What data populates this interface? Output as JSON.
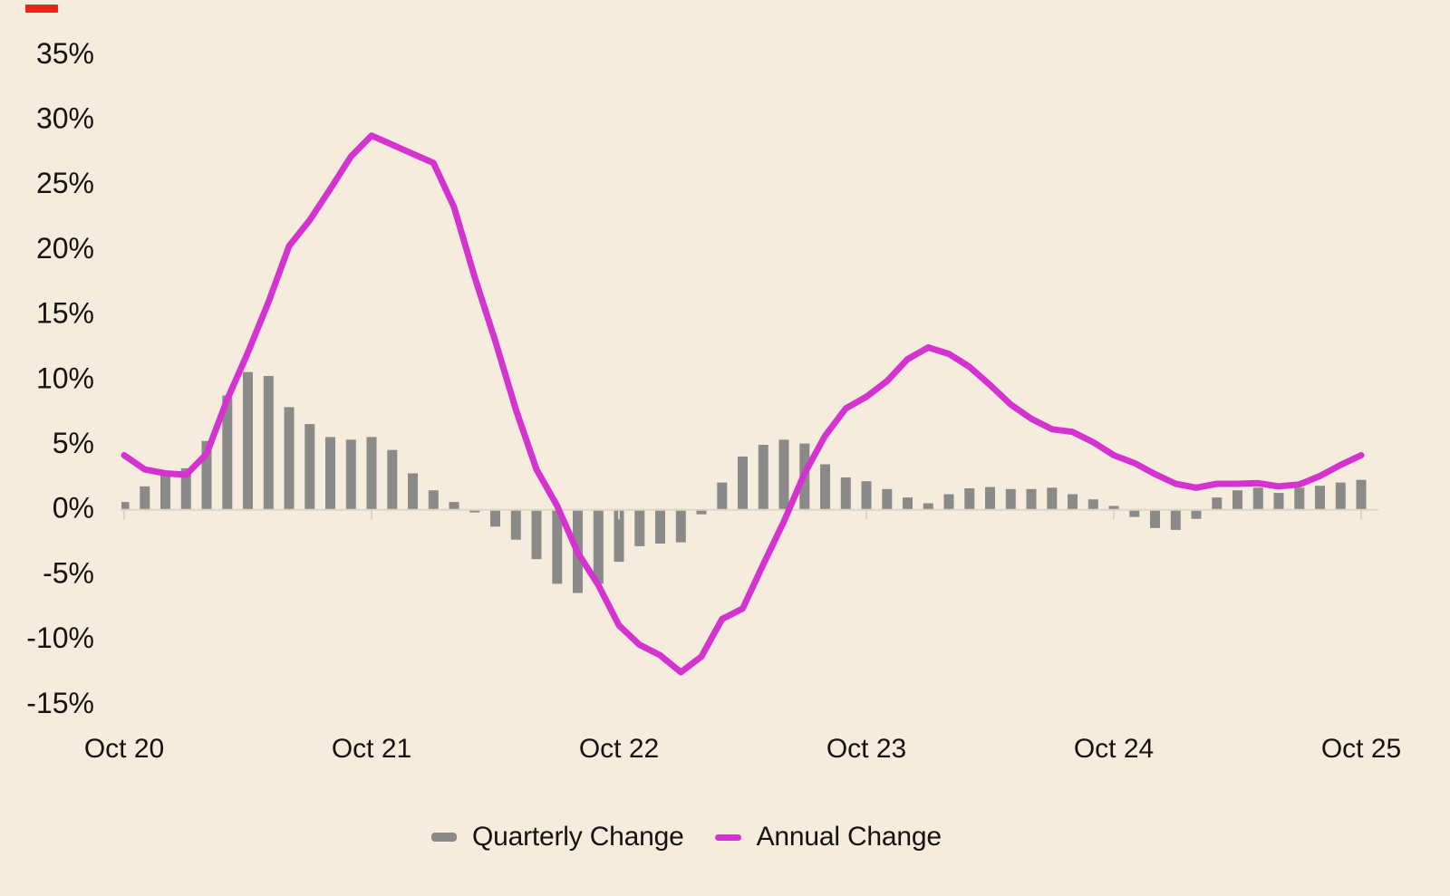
{
  "page": {
    "background_color": "#f5ecdd",
    "text_color": "#16120f",
    "axis_line_color": "#ddd5c5",
    "red_dash_color": "#e8251a"
  },
  "legend": {
    "items": [
      {
        "label": "Quarterly Change",
        "swatch": "bar",
        "color": "#8a8a88"
      },
      {
        "label": "Annual Change",
        "swatch": "line",
        "color": "#d433d0"
      }
    ]
  },
  "chart_data": {
    "type": "bar+line combo",
    "x_unit": "month",
    "x_range_labels": [
      "Oct 20",
      "Oct 25"
    ],
    "x_ticks": [
      {
        "month": 0,
        "label": "Oct 20"
      },
      {
        "month": 12,
        "label": "Oct 21"
      },
      {
        "month": 24,
        "label": "Oct 22"
      },
      {
        "month": 36,
        "label": "Oct 23"
      },
      {
        "month": 48,
        "label": "Oct 24"
      },
      {
        "month": 60,
        "label": "Oct 25"
      }
    ],
    "y_ticks": [
      {
        "value": 35,
        "label": "35%"
      },
      {
        "value": 30,
        "label": "30%"
      },
      {
        "value": 25,
        "label": "25%"
      },
      {
        "value": 20,
        "label": "20%"
      },
      {
        "value": 15,
        "label": "15%"
      },
      {
        "value": 10,
        "label": "10%"
      },
      {
        "value": 5,
        "label": "5%"
      },
      {
        "value": 0,
        "label": "0%"
      },
      {
        "value": -5,
        "label": "-5%"
      },
      {
        "value": -10,
        "label": "-10%"
      },
      {
        "value": -15,
        "label": "-15%"
      }
    ],
    "ylim": [
      -15,
      35
    ],
    "grid": "baseline-only",
    "legend_position": "bottom",
    "series": [
      {
        "name": "Quarterly Change",
        "type": "bar",
        "color": "#8a8a88",
        "values": [
          0.6,
          1.8,
          2.7,
          3.2,
          5.3,
          8.8,
          10.6,
          10.3,
          7.9,
          6.6,
          5.6,
          5.4,
          5.6,
          4.6,
          2.8,
          1.5,
          0.6,
          -0.2,
          -1.3,
          -2.3,
          -3.8,
          -5.7,
          -6.4,
          -5.7,
          -4.0,
          -2.8,
          -2.6,
          -2.5,
          -0.35,
          2.1,
          4.1,
          5.0,
          5.4,
          5.1,
          3.5,
          2.5,
          2.2,
          1.6,
          0.95,
          0.5,
          1.2,
          1.65,
          1.75,
          1.6,
          1.6,
          1.7,
          1.2,
          0.8,
          0.3,
          -0.55,
          -1.4,
          -1.55,
          -0.7,
          0.95,
          1.5,
          1.7,
          1.3,
          1.7,
          1.85,
          2.1,
          2.3
        ]
      },
      {
        "name": "Annual Change",
        "type": "line",
        "color": "#d433d0",
        "values": [
          4.2,
          3.1,
          2.8,
          2.7,
          4.3,
          8.5,
          12.1,
          16.0,
          20.3,
          22.3,
          24.7,
          27.2,
          28.8,
          28.1,
          27.4,
          26.7,
          23.3,
          17.9,
          13.0,
          7.7,
          3.1,
          0.3,
          -3.3,
          -5.8,
          -8.9,
          -10.4,
          -11.2,
          -12.5,
          -11.3,
          -8.4,
          -7.6,
          -4.2,
          -0.9,
          2.8,
          5.7,
          7.8,
          8.7,
          9.9,
          11.6,
          12.5,
          12.0,
          11.0,
          9.6,
          8.1,
          7.0,
          6.2,
          6.0,
          5.2,
          4.2,
          3.6,
          2.75,
          2.0,
          1.7,
          2.0,
          2.0,
          2.05,
          1.8,
          1.95,
          2.6,
          3.45,
          4.2
        ]
      }
    ]
  }
}
